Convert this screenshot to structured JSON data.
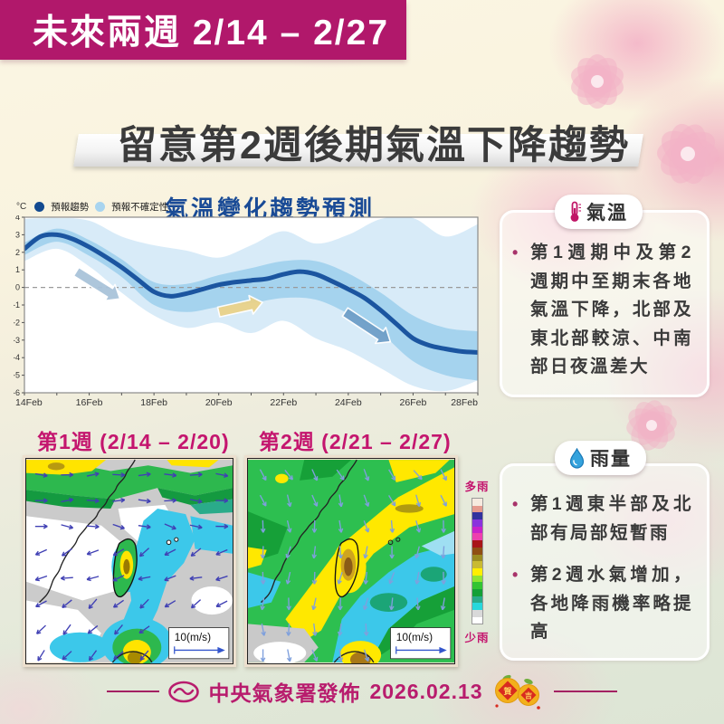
{
  "header": {
    "title": "未來兩週  2/14 – 2/27",
    "subtitle": "留意第2週後期氣溫下降趨勢"
  },
  "chart": {
    "title": "氣溫變化趨勢預測",
    "unit_label": "°C",
    "legend": [
      {
        "label": "預報趨勢",
        "color": "#134a90"
      },
      {
        "label": "預報不確定性",
        "color": "#a8d4ef"
      }
    ]
  },
  "chart_data": [
    {
      "type": "line",
      "title": "氣溫變化趨勢預測",
      "ylabel": "°C",
      "ylim": [
        -6,
        4
      ],
      "y_ticks": [
        4,
        3,
        2,
        1,
        0,
        -1,
        -2,
        -3,
        -4,
        -5,
        -6
      ],
      "x_ticks": [
        "14Feb",
        "16Feb",
        "18Feb",
        "20Feb",
        "22Feb",
        "24Feb",
        "26Feb",
        "28Feb"
      ],
      "x_tick_days": [
        0,
        2,
        4,
        6,
        8,
        10,
        12,
        14
      ],
      "series": [
        {
          "name": "預報趨勢",
          "points": [
            [
              0,
              2.2
            ],
            [
              0.5,
              2.9
            ],
            [
              1,
              3.0
            ],
            [
              1.5,
              2.75
            ],
            [
              2,
              2.3
            ],
            [
              2.5,
              1.75
            ],
            [
              3,
              1.15
            ],
            [
              3.5,
              0.45
            ],
            [
              4,
              -0.25
            ],
            [
              4.5,
              -0.5
            ],
            [
              5,
              -0.35
            ],
            [
              5.5,
              -0.1
            ],
            [
              6,
              0.15
            ],
            [
              6.5,
              0.3
            ],
            [
              7,
              0.4
            ],
            [
              7.5,
              0.5
            ],
            [
              8,
              0.75
            ],
            [
              8.5,
              0.9
            ],
            [
              9,
              0.75
            ],
            [
              9.5,
              0.35
            ],
            [
              10,
              -0.1
            ],
            [
              10.5,
              -0.6
            ],
            [
              11,
              -1.3
            ],
            [
              11.5,
              -2.1
            ],
            [
              12,
              -2.9
            ],
            [
              12.5,
              -3.3
            ],
            [
              13,
              -3.5
            ],
            [
              13.5,
              -3.65
            ],
            [
              14,
              -3.7
            ]
          ]
        }
      ],
      "uncertainty_inner": [
        [
          0,
          2.55,
          1.85
        ],
        [
          1,
          3.35,
          2.6
        ],
        [
          2,
          2.7,
          1.8
        ],
        [
          3,
          1.6,
          0.6
        ],
        [
          4,
          0.3,
          -1.0
        ],
        [
          5,
          0.2,
          -1.4
        ],
        [
          6,
          0.7,
          -1.1
        ],
        [
          7,
          1.1,
          -0.9
        ],
        [
          8,
          1.5,
          -0.6
        ],
        [
          9,
          1.5,
          -0.7
        ],
        [
          10,
          0.8,
          -1.5
        ],
        [
          11,
          -0.3,
          -2.6
        ],
        [
          12,
          -1.6,
          -4.2
        ],
        [
          13,
          -2.3,
          -5.0
        ],
        [
          14,
          -2.5,
          -5.3
        ]
      ],
      "uncertainty_outer": [
        [
          0,
          3.9,
          1.5
        ],
        [
          1,
          3.95,
          2.2
        ],
        [
          2,
          3.8,
          1.2
        ],
        [
          3,
          2.9,
          -0.3
        ],
        [
          4,
          2.4,
          -1.6
        ],
        [
          5,
          2.1,
          -2.3
        ],
        [
          6,
          1.7,
          -2.0
        ],
        [
          7,
          2.4,
          -2.6
        ],
        [
          8,
          3.2,
          -1.9
        ],
        [
          9,
          2.5,
          -2.9
        ],
        [
          10,
          3.0,
          -3.6
        ],
        [
          11,
          3.9,
          -4.6
        ],
        [
          12,
          3.95,
          -5.6
        ],
        [
          13,
          2.9,
          -5.9
        ],
        [
          14,
          3.6,
          -5.3
        ]
      ],
      "zero_line_dashed": true,
      "colors": {
        "trend": "#1b55a0",
        "inner_band": "#a5d3ee",
        "outer_band": "#d8ebf8",
        "axis": "#8a8a8a"
      },
      "arrows": [
        {
          "from_day": 1.6,
          "from_val": 0.9,
          "to_day": 2.95,
          "to_val": -0.65,
          "color": "#a9c3da"
        },
        {
          "from_day": 6.0,
          "from_val": -1.4,
          "to_day": 7.35,
          "to_val": -0.85,
          "color": "#e9d28a"
        },
        {
          "from_day": 9.9,
          "from_val": -1.4,
          "to_day": 11.3,
          "to_val": -3.1,
          "color": "#6f9fc8"
        }
      ]
    },
    {
      "type": "heatmap",
      "title": "第1週 (2/14 – 2/20)",
      "colorbar_top": "多雨",
      "colorbar_bottom": "少雨",
      "wind_scale_label": "10(m/s)"
    },
    {
      "type": "heatmap",
      "title": "第2週 (2/21 – 2/27)",
      "colorbar_top": "多雨",
      "colorbar_bottom": "少雨",
      "wind_scale_label": "10(m/s)"
    }
  ],
  "maps": {
    "week1_label": "第1週 (2/14 – 2/20)",
    "week2_label": "第2週 (2/21 – 2/27)",
    "scale_label": "10(m/s)",
    "colorbar": {
      "top_label": "多雨",
      "bottom_label": "少雨",
      "colors": [
        "#f6eadf",
        "#e59a8e",
        "#32329e",
        "#8a33dd",
        "#c922c9",
        "#ee3fae",
        "#a81518",
        "#8f4f14",
        "#9a8c22",
        "#c9ba32",
        "#ffee00",
        "#8ee432",
        "#33c433",
        "#14a036",
        "#2aab8a",
        "#28d8dc",
        "#d9d9d9",
        "#ffffff"
      ]
    }
  },
  "sidebar": {
    "temperature": {
      "title": "氣溫",
      "bullets": [
        "第1週期中及第2週期中至期末各地氣溫下降，北部及東北部較涼、中南部日夜溫差大"
      ]
    },
    "rain": {
      "title": "雨量",
      "bullets": [
        "第1週東半部及北部有局部短暫雨",
        "第2週水氣增加，各地降雨機率略提高"
      ]
    }
  },
  "footer": {
    "agency": "中央氣象署發佈",
    "date": "2026.02.13",
    "orange_chars": [
      "賀",
      "吉"
    ]
  }
}
